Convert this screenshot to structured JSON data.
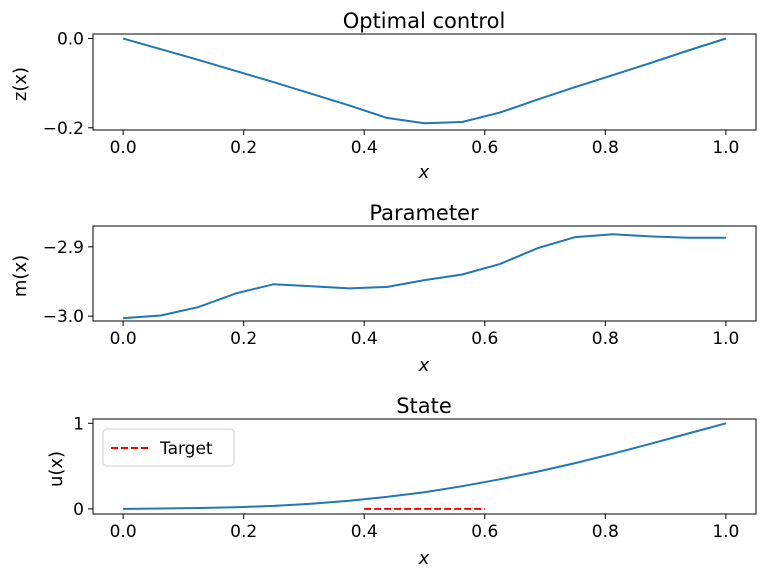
{
  "chart_data": [
    {
      "type": "line",
      "title": "Optimal control",
      "xlabel": "x",
      "ylabel": "z(x)",
      "xlim": [
        -0.05,
        1.05
      ],
      "ylim": [
        -0.205,
        0.01
      ],
      "xticks": [
        "0.0",
        "0.2",
        "0.4",
        "0.6",
        "0.8",
        "1.0"
      ],
      "yticks": [
        "0.0",
        "−0.2"
      ],
      "yticks_values": [
        0.0,
        -0.2
      ],
      "grid": false,
      "series": [
        {
          "color": "#1f77b4",
          "x": [
            0.0,
            0.0625,
            0.125,
            0.1875,
            0.25,
            0.3125,
            0.375,
            0.4375,
            0.5,
            0.5625,
            0.625,
            0.6875,
            0.75,
            0.8125,
            0.875,
            0.9375,
            1.0
          ],
          "y": [
            0.0,
            -0.024,
            -0.048,
            -0.073,
            -0.098,
            -0.124,
            -0.15,
            -0.178,
            -0.19,
            -0.187,
            -0.166,
            -0.137,
            -0.109,
            -0.082,
            -0.055,
            -0.027,
            0.0
          ]
        }
      ]
    },
    {
      "type": "line",
      "title": "Parameter",
      "xlabel": "x",
      "ylabel": "m(x)",
      "xlim": [
        -0.05,
        1.05
      ],
      "ylim": [
        -3.007,
        -2.87
      ],
      "xticks": [
        "0.0",
        "0.2",
        "0.4",
        "0.6",
        "0.8",
        "1.0"
      ],
      "yticks": [
        "−2.9",
        "−3.0"
      ],
      "yticks_values": [
        -2.9,
        -3.0
      ],
      "grid": false,
      "series": [
        {
          "color": "#1f77b4",
          "x": [
            0.0,
            0.0625,
            0.125,
            0.1875,
            0.25,
            0.3125,
            0.375,
            0.4375,
            0.5,
            0.5625,
            0.625,
            0.6875,
            0.75,
            0.8125,
            0.875,
            0.9375,
            1.0
          ],
          "y": [
            -3.003,
            -2.999,
            -2.987,
            -2.967,
            -2.954,
            -2.957,
            -2.96,
            -2.958,
            -2.948,
            -2.94,
            -2.925,
            -2.902,
            -2.886,
            -2.882,
            -2.885,
            -2.887,
            -2.887
          ]
        }
      ]
    },
    {
      "type": "line",
      "title": "State",
      "xlabel": "x",
      "ylabel": "u(x)",
      "xlim": [
        -0.05,
        1.05
      ],
      "ylim": [
        -0.06,
        1.05
      ],
      "xticks": [
        "0.0",
        "0.2",
        "0.4",
        "0.6",
        "0.8",
        "1.0"
      ],
      "yticks": [
        "1",
        "0"
      ],
      "yticks_values": [
        1,
        0
      ],
      "grid": false,
      "legend": "upper-left",
      "series": [
        {
          "color": "#1f77b4",
          "x": [
            0.0,
            0.0625,
            0.125,
            0.1875,
            0.25,
            0.3125,
            0.375,
            0.4375,
            0.5,
            0.5625,
            0.625,
            0.6875,
            0.75,
            0.8125,
            0.875,
            0.9375,
            1.0
          ],
          "y": [
            0.0,
            0.004,
            0.01,
            0.02,
            0.035,
            0.06,
            0.095,
            0.14,
            0.195,
            0.265,
            0.345,
            0.435,
            0.535,
            0.645,
            0.76,
            0.88,
            1.0
          ]
        },
        {
          "name": "Target",
          "color": "#ff0000",
          "dashed": true,
          "x": [
            0.4,
            0.6
          ],
          "y": [
            0.0,
            0.0
          ]
        }
      ]
    }
  ]
}
